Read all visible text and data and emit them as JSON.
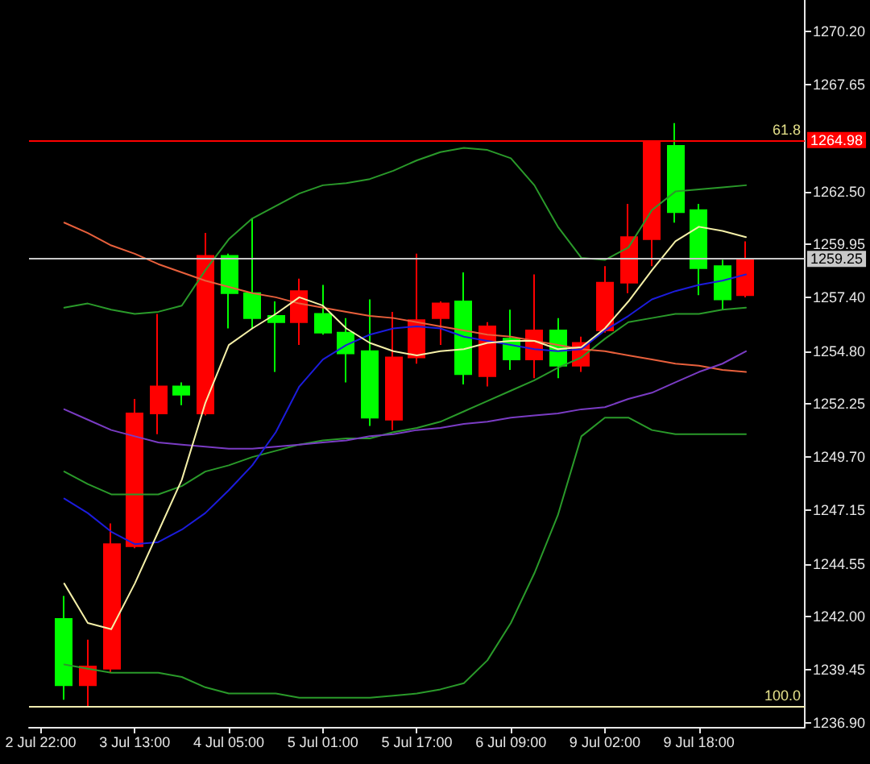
{
  "chart_data": {
    "type": "candlestick",
    "categories": [
      "2 Jul 22:00",
      null,
      null,
      null,
      "3 Jul 13:00",
      null,
      null,
      null,
      "4 Jul 05:00",
      null,
      null,
      null,
      "5 Jul 01:00",
      null,
      null,
      null,
      "5 Jul 17:00",
      null,
      null,
      null,
      "6 Jul 09:00",
      null,
      null,
      null,
      "9 Jul 02:00",
      null,
      null,
      null,
      "9 Jul 18:00",
      null,
      null,
      null,
      null
    ],
    "ohlc": [
      null,
      [
        1241.9,
        1243.0,
        1238.0,
        1238.7
      ],
      [
        1238.7,
        1240.9,
        1237.7,
        1239.6
      ],
      [
        1239.5,
        1246.5,
        1239.3,
        1245.5
      ],
      [
        1245.4,
        1252.5,
        1245.3,
        1251.8
      ],
      [
        1251.8,
        1256.6,
        1250.8,
        1253.1
      ],
      [
        1253.1,
        1253.3,
        1252.2,
        1252.7
      ],
      [
        1251.8,
        1260.5,
        1251.7,
        1259.4
      ],
      [
        1259.4,
        1259.5,
        1255.9,
        1257.6
      ],
      [
        1257.6,
        1261.2,
        1255.9,
        1256.4
      ],
      [
        1256.5,
        1257.2,
        1253.8,
        1256.2
      ],
      [
        1256.2,
        1258.3,
        1255.1,
        1257.7
      ],
      [
        1256.6,
        1258.0,
        1255.6,
        1255.7
      ],
      [
        1255.7,
        1256.4,
        1253.3,
        1254.7
      ],
      [
        1254.8,
        1257.3,
        1251.2,
        1251.6
      ],
      [
        1251.5,
        1256.7,
        1251.0,
        1254.5
      ],
      [
        1254.5,
        1259.5,
        1254.2,
        1256.3
      ],
      [
        1256.4,
        1257.2,
        1255.1,
        1257.1
      ],
      [
        1257.2,
        1258.6,
        1253.2,
        1253.7
      ],
      [
        1253.6,
        1256.2,
        1253.1,
        1256.0
      ],
      [
        1255.4,
        1256.8,
        1253.9,
        1254.4
      ],
      [
        1254.4,
        1258.5,
        1253.5,
        1255.8
      ],
      [
        1255.8,
        1256.4,
        1253.5,
        1254.1
      ],
      [
        1254.1,
        1255.5,
        1253.8,
        1255.2
      ],
      [
        1255.8,
        1258.9,
        1255.7,
        1258.1
      ],
      [
        1258.1,
        1261.9,
        1257.6,
        1260.3
      ],
      [
        1260.2,
        1264.9,
        1258.9,
        1264.9
      ],
      [
        1264.7,
        1265.8,
        1261.0,
        1261.5
      ],
      [
        1261.6,
        1261.9,
        1257.5,
        1258.8
      ],
      [
        1258.9,
        1259.2,
        1256.8,
        1257.3
      ],
      [
        1257.5,
        1260.1,
        1257.4,
        1259.25
      ],
      null,
      null
    ],
    "colors": [
      null,
      "#00ff00",
      "#ff0000",
      "#ff0000",
      "#ff0000",
      "#ff0000",
      "#00ff00",
      "#ff0000",
      "#00ff00",
      "#00ff00",
      "#00ff00",
      "#ff0000",
      "#00ff00",
      "#00ff00",
      "#00ff00",
      "#ff0000",
      "#ff0000",
      "#ff0000",
      "#00ff00",
      "#ff0000",
      "#00ff00",
      "#ff0000",
      "#00ff00",
      "#ff0000",
      "#ff0000",
      "#ff0000",
      "#ff0000",
      "#00ff00",
      "#00ff00",
      "#00ff00",
      "#ff0000",
      null,
      null
    ],
    "series": [
      {
        "type": "line",
        "color": "#2a9a2a",
        "values": [
          null,
          1256.9,
          1257.1,
          1256.8,
          1256.6,
          1256.7,
          1257.0,
          1258.7,
          1260.2,
          1261.2,
          1261.8,
          1262.4,
          1262.8,
          1262.9,
          1263.1,
          1263.5,
          1264.0,
          1264.4,
          1264.6,
          1264.5,
          1264.1,
          1262.8,
          1260.8,
          1259.3,
          1259.2,
          1259.8,
          1261.6,
          1262.5,
          1262.6,
          1262.7,
          1262.8,
          null,
          null
        ]
      },
      {
        "type": "line",
        "color": "#2a9a2a",
        "values": [
          null,
          1249.0,
          1248.4,
          1247.9,
          1247.9,
          1247.9,
          1248.3,
          1249.0,
          1249.3,
          1249.7,
          1250.0,
          1250.3,
          1250.5,
          1250.6,
          1250.6,
          1250.9,
          1251.1,
          1251.4,
          1251.9,
          1252.4,
          1252.9,
          1253.4,
          1254.0,
          1254.5,
          1255.4,
          1256.2,
          1256.4,
          1256.6,
          1256.6,
          1256.8,
          1256.9,
          null,
          null
        ]
      },
      {
        "type": "line",
        "color": "#2a9a2a",
        "values": [
          null,
          1239.7,
          1239.5,
          1239.3,
          1239.3,
          1239.3,
          1239.1,
          1238.6,
          1238.3,
          1238.3,
          1238.3,
          1238.1,
          1238.1,
          1238.1,
          1238.1,
          1238.2,
          1238.3,
          1238.5,
          1238.8,
          1239.9,
          1241.7,
          1244.1,
          1246.9,
          1250.7,
          1251.6,
          1251.6,
          1251.0,
          1250.8,
          1250.8,
          1250.8,
          1250.8,
          null,
          null
        ]
      },
      {
        "type": "line",
        "color": "#e8603c",
        "values": [
          null,
          1261.0,
          1260.5,
          1259.9,
          1259.5,
          1259.0,
          1258.6,
          1258.2,
          1257.9,
          1257.6,
          1257.4,
          1257.1,
          1256.9,
          1256.7,
          1256.5,
          1256.4,
          1256.2,
          1256.0,
          1255.8,
          1255.6,
          1255.5,
          1255.3,
          1255.1,
          1254.9,
          1254.8,
          1254.6,
          1254.4,
          1254.2,
          1254.1,
          1253.9,
          1253.8,
          null,
          null
        ]
      },
      {
        "type": "line",
        "color": "#7a3cc4",
        "values": [
          null,
          1252.0,
          1251.5,
          1251.0,
          1250.7,
          1250.4,
          1250.3,
          1250.2,
          1250.1,
          1250.1,
          1250.2,
          1250.3,
          1250.4,
          1250.5,
          1250.7,
          1250.8,
          1251.0,
          1251.1,
          1251.3,
          1251.4,
          1251.6,
          1251.7,
          1251.8,
          1252.0,
          1252.1,
          1252.5,
          1252.8,
          1253.3,
          1253.8,
          1254.2,
          1254.8,
          null,
          null
        ]
      },
      {
        "type": "line",
        "color": "#1c1cdc",
        "values": [
          null,
          1247.7,
          1247.0,
          1246.1,
          1245.5,
          1245.6,
          1246.2,
          1247.0,
          1248.1,
          1249.3,
          1250.9,
          1253.1,
          1254.4,
          1255.1,
          1255.6,
          1255.9,
          1256.0,
          1255.9,
          1255.5,
          1255.3,
          1255.1,
          1254.9,
          1254.8,
          1254.9,
          1255.8,
          1256.5,
          1257.3,
          1257.7,
          1258.0,
          1258.2,
          1258.5,
          null,
          null
        ]
      },
      {
        "type": "line",
        "color": "#f5f0a8",
        "values": [
          null,
          1243.6,
          1241.7,
          1241.4,
          1243.6,
          1246.1,
          1248.6,
          1252.3,
          1255.1,
          1255.9,
          1256.6,
          1257.4,
          1257.0,
          1255.9,
          1255.2,
          1254.8,
          1254.6,
          1254.8,
          1254.9,
          1255.2,
          1255.3,
          1255.3,
          1254.9,
          1255.0,
          1255.9,
          1257.2,
          1258.7,
          1260.1,
          1260.8,
          1260.6,
          1260.3,
          null,
          null
        ]
      }
    ],
    "ylim": [
      1236.69,
      1271.73
    ],
    "yticks": [
      {
        "value": 1236.9,
        "label": "1236.90"
      },
      1239.45,
      {
        "value": 1242,
        "label": "1242.00"
      },
      1244.55,
      1247.15,
      {
        "value": 1249.7,
        "label": "1249.70"
      },
      1252.25,
      {
        "value": 1254.8,
        "label": "1254.80"
      },
      {
        "value": 1257.4,
        "label": "1257.40"
      },
      1259.95,
      {
        "value": 1262.5,
        "label": "1262.50"
      },
      1267.65,
      {
        "value": 1270.2,
        "label": "1270.20"
      }
    ],
    "ref_lines": [
      {
        "axis": "y",
        "value": 1264.98,
        "label": "1264.98",
        "color": "#ff0000"
      },
      {
        "axis": "y",
        "value": 1259.25,
        "label": "1259.25",
        "color": "#c8c8c8"
      },
      {
        "axis": "y",
        "value": 1237.7,
        "color": "#f0ecb0"
      }
    ],
    "annotations": [
      {
        "text": "61.8",
        "y": 1264.98
      },
      {
        "text": "100.0",
        "y": 1237.7
      }
    ]
  }
}
